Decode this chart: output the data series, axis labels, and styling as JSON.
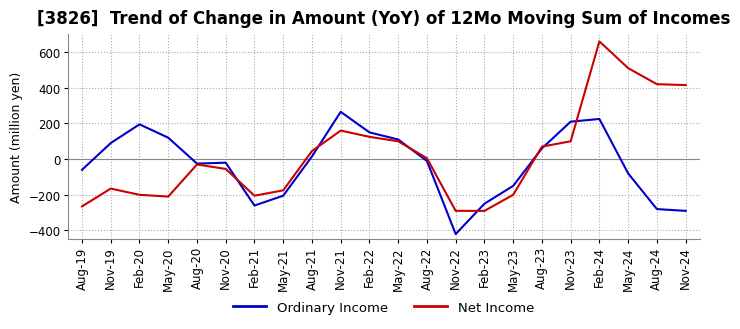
{
  "title": "[3826]  Trend of Change in Amount (YoY) of 12Mo Moving Sum of Incomes",
  "ylabel": "Amount (million yen)",
  "ylim": [
    -450,
    700
  ],
  "yticks": [
    -400,
    -200,
    0,
    200,
    400,
    600
  ],
  "x_labels": [
    "Aug-19",
    "Nov-19",
    "Feb-20",
    "May-20",
    "Aug-20",
    "Nov-20",
    "Feb-21",
    "May-21",
    "Aug-21",
    "Nov-21",
    "Feb-22",
    "May-22",
    "Aug-22",
    "Nov-22",
    "Feb-23",
    "May-23",
    "Aug-23",
    "Nov-23",
    "Feb-24",
    "May-24",
    "Aug-24",
    "Nov-24"
  ],
  "ordinary_income": [
    -60,
    90,
    195,
    120,
    -25,
    -20,
    -260,
    -205,
    15,
    265,
    150,
    110,
    -10,
    -420,
    -250,
    -150,
    60,
    210,
    225,
    -80,
    -280,
    -290
  ],
  "net_income": [
    -265,
    -165,
    -200,
    -210,
    -30,
    -55,
    -205,
    -175,
    45,
    160,
    125,
    100,
    5,
    -290,
    -290,
    -200,
    70,
    100,
    660,
    510,
    420,
    415
  ],
  "ordinary_color": "#0000cc",
  "net_color": "#cc0000",
  "background_color": "#ffffff",
  "grid_color": "#aaaaaa",
  "zeroline_color": "#888888",
  "title_fontsize": 12,
  "label_fontsize": 9,
  "tick_fontsize": 8.5
}
